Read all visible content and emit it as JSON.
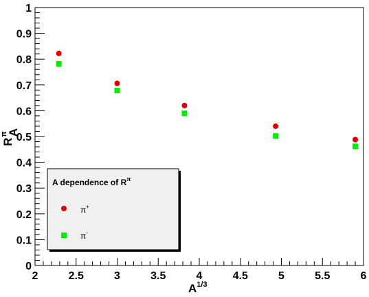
{
  "chart_data": {
    "type": "scatter",
    "title": "",
    "xlabel": "A",
    "xlabel_superscript": "1/3",
    "ylabel": "R",
    "ylabel_superscript": "π",
    "ylabel_subscript": "A",
    "xlim": [
      2,
      6
    ],
    "ylim": [
      0,
      1
    ],
    "xticks": [
      "2",
      "2.5",
      "3",
      "3.5",
      "4",
      "4.5",
      "5",
      "5.5",
      "6"
    ],
    "yticks": [
      "0",
      "0.1",
      "0.2",
      "0.3",
      "0.4",
      "0.5",
      "0.6",
      "0.7",
      "0.8",
      "0.9",
      "1"
    ],
    "grid": false,
    "legend": {
      "placement": "bottom-left",
      "title": "A dependence of R",
      "title_superscript": "π"
    },
    "series": [
      {
        "name": "π",
        "name_superscript": "+",
        "marker": "circle",
        "color": "#e00000",
        "points": [
          [
            2.29,
            0.822
          ],
          [
            3.0,
            0.706
          ],
          [
            3.82,
            0.62
          ],
          [
            4.93,
            0.54
          ],
          [
            5.9,
            0.488
          ]
        ]
      },
      {
        "name": "π",
        "name_superscript": "-",
        "marker": "square",
        "color": "#00ee00",
        "points": [
          [
            2.29,
            0.782
          ],
          [
            3.0,
            0.678
          ],
          [
            3.82,
            0.59
          ],
          [
            4.93,
            0.502
          ],
          [
            5.9,
            0.462
          ]
        ]
      }
    ]
  }
}
